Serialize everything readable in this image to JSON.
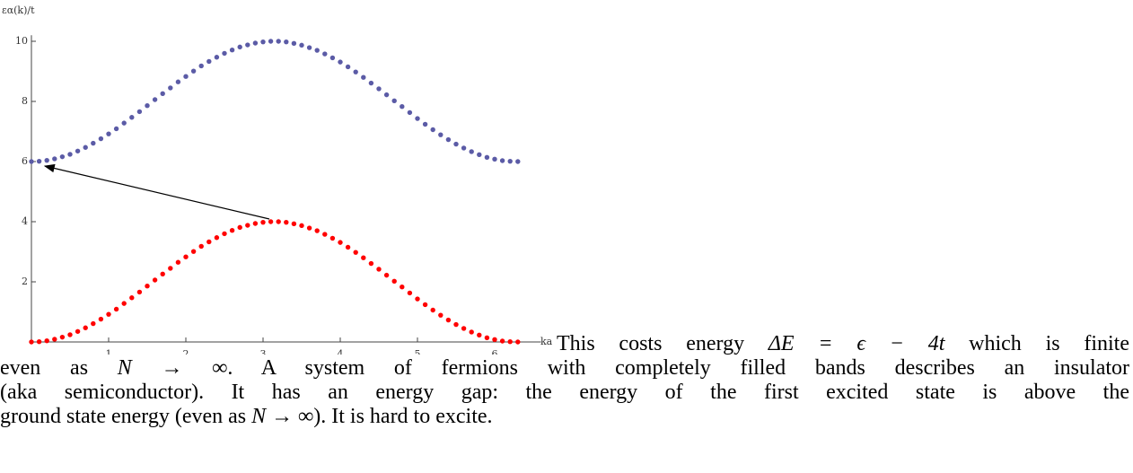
{
  "chart_data": {
    "type": "scatter",
    "y_label": "εα(k)/t",
    "x_label": "ka",
    "x": [
      0,
      0.1,
      0.2,
      0.3,
      0.4,
      0.5,
      0.6,
      0.7,
      0.8,
      0.9,
      1.0,
      1.1,
      1.2,
      1.3,
      1.4,
      1.5,
      1.6,
      1.7,
      1.8,
      1.9,
      2.0,
      2.1,
      2.2,
      2.3,
      2.4,
      2.5,
      2.6,
      2.7,
      2.8,
      2.9,
      3.0,
      3.1,
      3.2,
      3.3,
      3.4,
      3.5,
      3.6,
      3.7,
      3.8,
      3.9,
      4.0,
      4.1,
      4.2,
      4.3,
      4.4,
      4.5,
      4.6,
      4.7,
      4.8,
      4.9,
      5.0,
      5.1,
      5.2,
      5.3,
      5.4,
      5.5,
      5.6,
      5.7,
      5.8,
      5.9,
      6.0,
      6.1,
      6.2,
      6.3
    ],
    "series": [
      {
        "color": "#5b5ba6",
        "values": [
          6,
          6.01,
          6.04,
          6.09,
          6.16,
          6.24,
          6.35,
          6.47,
          6.61,
          6.76,
          6.92,
          7.09,
          7.28,
          7.47,
          7.66,
          7.86,
          8.06,
          8.26,
          8.45,
          8.65,
          8.83,
          9.01,
          9.18,
          9.33,
          9.47,
          9.6,
          9.71,
          9.81,
          9.88,
          9.94,
          9.98,
          10,
          10,
          9.98,
          9.93,
          9.87,
          9.79,
          9.7,
          9.58,
          9.45,
          9.31,
          9.15,
          8.98,
          8.8,
          8.61,
          8.42,
          8.22,
          8.02,
          7.83,
          7.63,
          7.43,
          7.24,
          7.06,
          6.89,
          6.73,
          6.58,
          6.45,
          6.33,
          6.23,
          6.14,
          6.08,
          6.03,
          6.01,
          6
        ]
      },
      {
        "color": "#ff0000",
        "values": [
          0,
          0.01,
          0.04,
          0.09,
          0.16,
          0.24,
          0.35,
          0.47,
          0.61,
          0.76,
          0.92,
          1.09,
          1.28,
          1.47,
          1.66,
          1.86,
          2.06,
          2.26,
          2.45,
          2.65,
          2.83,
          3.01,
          3.18,
          3.33,
          3.47,
          3.6,
          3.71,
          3.81,
          3.88,
          3.94,
          3.98,
          4,
          4,
          3.98,
          3.93,
          3.87,
          3.79,
          3.7,
          3.58,
          3.45,
          3.31,
          3.15,
          2.98,
          2.8,
          2.61,
          2.42,
          2.22,
          2.02,
          1.83,
          1.63,
          1.43,
          1.24,
          1.06,
          0.89,
          0.73,
          0.58,
          0.45,
          0.33,
          0.23,
          0.14,
          0.08,
          0.03,
          0.01,
          0
        ]
      }
    ],
    "xlim": [
      0,
      6.6
    ],
    "ylim": [
      0,
      10.2
    ],
    "xticks": [
      1,
      2,
      3,
      4,
      5,
      6
    ],
    "yticks": [
      2,
      4,
      6,
      8,
      10
    ]
  },
  "text": {
    "lines": [
      [
        "This costs energy ",
        "ΔE = ϵ − 4t",
        " which is finite"
      ],
      [
        "even as ",
        "N → ∞",
        ". A system of fermions with completely filled bands describes an insulator"
      ],
      [
        "(aka semiconductor). It has an energy gap: the energy of the first excited state is above the"
      ],
      [
        "ground state energy (even as ",
        "N → ∞",
        "). It is hard to excite."
      ]
    ]
  }
}
